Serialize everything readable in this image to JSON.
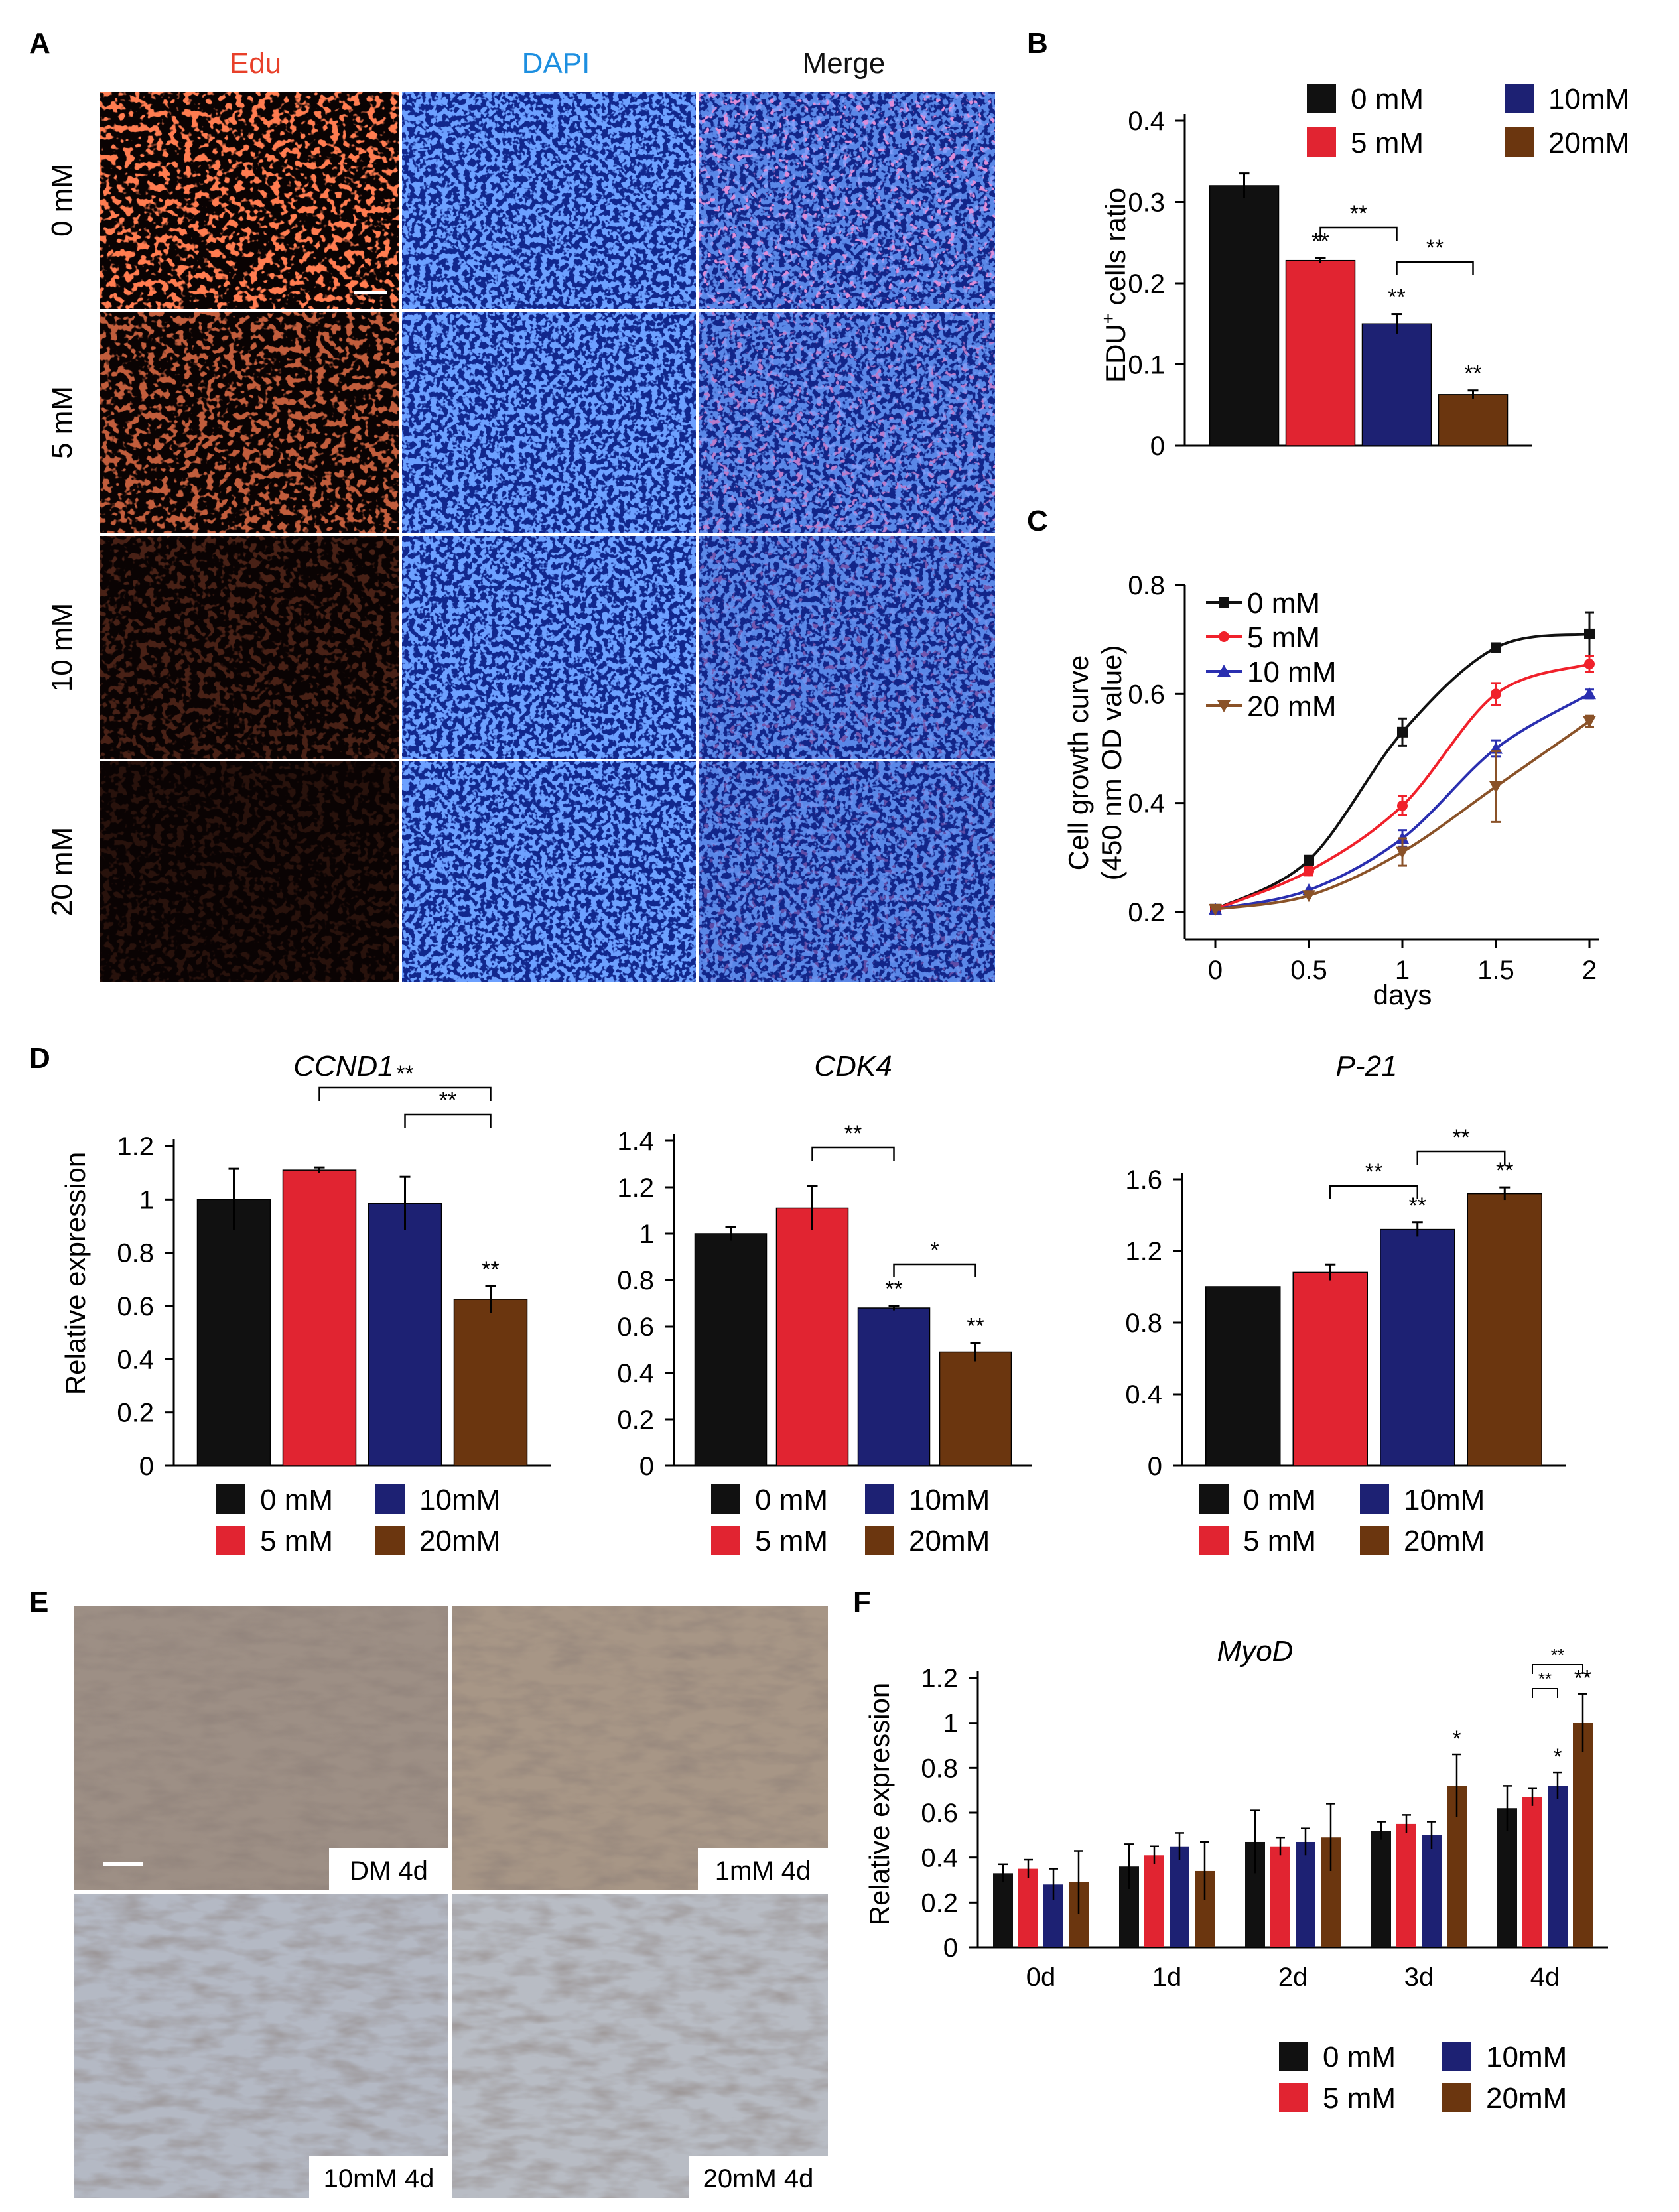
{
  "colors": {
    "c0": "#111111",
    "c5": "#e12431",
    "c10": "#1d2173",
    "c20": "#6b360f"
  },
  "panels": {
    "A": "A",
    "B": "B",
    "C": "C",
    "D": "D",
    "E": "E",
    "F": "F"
  },
  "legend": [
    "0 mM",
    "5 mM",
    "10mM",
    "20mM"
  ],
  "panelA": {
    "columns": [
      "Edu",
      "DAPI",
      "Merge"
    ],
    "rows": [
      "0 mM",
      "5 mM",
      "10 mM",
      "20 mM"
    ],
    "edu_intensity": [
      1.0,
      0.75,
      0.25,
      0.12
    ]
  },
  "panelE": {
    "labels": [
      "DM 4d",
      "1mM 4d",
      "10mM 4d",
      "20mM 4d"
    ]
  },
  "chart_data": [
    {
      "id": "B",
      "type": "bar",
      "title": "",
      "ylabel_main": "EDU",
      "ylabel_sup": "+",
      "ylabel_rest": " cells ratio",
      "categories": [
        "0 mM",
        "5 mM",
        "10mM",
        "20mM"
      ],
      "values": [
        0.32,
        0.228,
        0.15,
        0.063
      ],
      "errors": [
        0.015,
        0.003,
        0.012,
        0.005
      ],
      "ylim": [
        0,
        0.4
      ],
      "yticks": [
        0,
        0.1,
        0.2,
        0.3,
        0.4
      ],
      "ytick_labels": [
        "0",
        "0.1",
        "0.2",
        "0.3",
        "0.4"
      ],
      "bar_marks": [
        "",
        "**",
        "**",
        "**"
      ],
      "brackets": [
        {
          "from": 1,
          "to": 2,
          "label": "**"
        },
        {
          "from": 2,
          "to": 3,
          "label": "**"
        }
      ]
    },
    {
      "id": "C",
      "type": "line",
      "ylabel_line1": "Cell growth curve",
      "ylabel_line2": "(450 nm OD value)",
      "xlabel": "days",
      "x": [
        0,
        0.5,
        1,
        1.5,
        2
      ],
      "xtick_labels": [
        "0",
        "0.5",
        "1",
        "1.5",
        "2"
      ],
      "ylim": [
        0.15,
        0.8
      ],
      "yticks": [
        0.2,
        0.4,
        0.6,
        0.8
      ],
      "ytick_labels": [
        "0.2",
        "0.4",
        "0.6",
        "0.8"
      ],
      "series": [
        {
          "name": "0 mM",
          "values": [
            0.205,
            0.295,
            0.53,
            0.685,
            0.71
          ],
          "errors": [
            0.005,
            0.008,
            0.025,
            0.006,
            0.04
          ]
        },
        {
          "name": "5 mM",
          "values": [
            0.205,
            0.275,
            0.395,
            0.6,
            0.655
          ],
          "errors": [
            0.005,
            0.008,
            0.018,
            0.02,
            0.015
          ]
        },
        {
          "name": "10 mM",
          "values": [
            0.205,
            0.24,
            0.335,
            0.5,
            0.6
          ],
          "errors": [
            0.005,
            0.006,
            0.015,
            0.015,
            0.008
          ]
        },
        {
          "name": "20 mM",
          "values": [
            0.205,
            0.23,
            0.31,
            0.43,
            0.55
          ],
          "errors": [
            0.005,
            0.006,
            0.025,
            0.065,
            0.01
          ]
        }
      ]
    },
    {
      "id": "D1",
      "type": "bar",
      "title": "CCND1",
      "ylabel": "Relative expression",
      "categories": [
        "0 mM",
        "5 mM",
        "10mM",
        "20mM"
      ],
      "values": [
        1.0,
        1.11,
        0.985,
        0.625
      ],
      "errors": [
        0.115,
        0.01,
        0.1,
        0.05
      ],
      "ylim": [
        0,
        1.2
      ],
      "yticks": [
        0,
        0.2,
        0.4,
        0.6,
        0.8,
        1.0,
        1.2
      ],
      "ytick_labels": [
        "0",
        "0.2",
        "0.4",
        "0.6",
        "0.8",
        "1",
        "1.2"
      ],
      "bar_marks": [
        "",
        "",
        "",
        "**"
      ],
      "brackets": [
        {
          "from": 1,
          "to": 3,
          "label": "**",
          "level": 2
        },
        {
          "from": 2,
          "to": 3,
          "label": "**",
          "level": 1
        }
      ]
    },
    {
      "id": "D2",
      "type": "bar",
      "title": "CDK4",
      "categories": [
        "0 mM",
        "5 mM",
        "10mM",
        "20mM"
      ],
      "values": [
        1.0,
        1.11,
        0.68,
        0.49
      ],
      "errors": [
        0.03,
        0.095,
        0.01,
        0.04
      ],
      "ylim": [
        0,
        1.4
      ],
      "yticks": [
        0,
        0.2,
        0.4,
        0.6,
        0.8,
        1.0,
        1.2,
        1.4
      ],
      "ytick_labels": [
        "0",
        "0.2",
        "0.4",
        "0.6",
        "0.8",
        "1",
        "1.2",
        "1.4"
      ],
      "bar_marks": [
        "",
        "",
        "**",
        "**"
      ],
      "brackets": [
        {
          "from": 1,
          "to": 2,
          "label": "**",
          "level": 2
        },
        {
          "from": 2,
          "to": 3,
          "label": "*",
          "level": 1
        }
      ]
    },
    {
      "id": "D3",
      "type": "bar",
      "title": "P-21",
      "categories": [
        "0 mM",
        "5 mM",
        "10mM",
        "20mM"
      ],
      "values": [
        1.0,
        1.08,
        1.32,
        1.52
      ],
      "errors": [
        0.0,
        0.045,
        0.04,
        0.035
      ],
      "ylim": [
        0,
        1.6
      ],
      "yticks": [
        0,
        0.4,
        0.8,
        1.2,
        1.6
      ],
      "ytick_labels": [
        "0",
        "0.4",
        "0.8",
        "1.2",
        "1.6"
      ],
      "bar_marks": [
        "",
        "",
        "**",
        "**"
      ],
      "brackets": [
        {
          "from": 1,
          "to": 2,
          "label": "**",
          "level": 1
        },
        {
          "from": 2,
          "to": 3,
          "label": "**",
          "level": 2
        }
      ]
    },
    {
      "id": "F",
      "type": "bar",
      "title": "MyoD",
      "ylabel": "Relative expression",
      "categories": [
        "0d",
        "1d",
        "2d",
        "3d",
        "4d"
      ],
      "series": [
        {
          "name": "0 mM",
          "values": [
            0.33,
            0.36,
            0.47,
            0.52,
            0.62
          ],
          "errors": [
            0.04,
            0.1,
            0.14,
            0.04,
            0.1
          ]
        },
        {
          "name": "5 mM",
          "values": [
            0.35,
            0.41,
            0.45,
            0.55,
            0.67
          ],
          "errors": [
            0.04,
            0.04,
            0.04,
            0.04,
            0.04
          ]
        },
        {
          "name": "10mM",
          "values": [
            0.28,
            0.45,
            0.47,
            0.5,
            0.72
          ],
          "errors": [
            0.07,
            0.06,
            0.06,
            0.06,
            0.06
          ]
        },
        {
          "name": "20mM",
          "values": [
            0.29,
            0.34,
            0.49,
            0.72,
            1.0
          ],
          "errors": [
            0.14,
            0.13,
            0.15,
            0.14,
            0.13
          ]
        }
      ],
      "ylim": [
        0,
        1.2
      ],
      "yticks": [
        0,
        0.2,
        0.4,
        0.6,
        0.8,
        1.0,
        1.2
      ],
      "ytick_labels": [
        "0",
        "0.2",
        "0.4",
        "0.6",
        "0.8",
        "1",
        "1.2"
      ],
      "annotations": [
        {
          "group": 3,
          "series": 3,
          "label": "*"
        },
        {
          "group": 4,
          "series": 2,
          "label": "*"
        },
        {
          "group": 4,
          "series": 3,
          "label": "**"
        }
      ],
      "brackets": [
        {
          "group": 4,
          "from": 1,
          "to": 2,
          "label": "**",
          "level": 1
        },
        {
          "group": 4,
          "from": 1,
          "to": 3,
          "label": "**",
          "level": 2
        }
      ]
    }
  ]
}
